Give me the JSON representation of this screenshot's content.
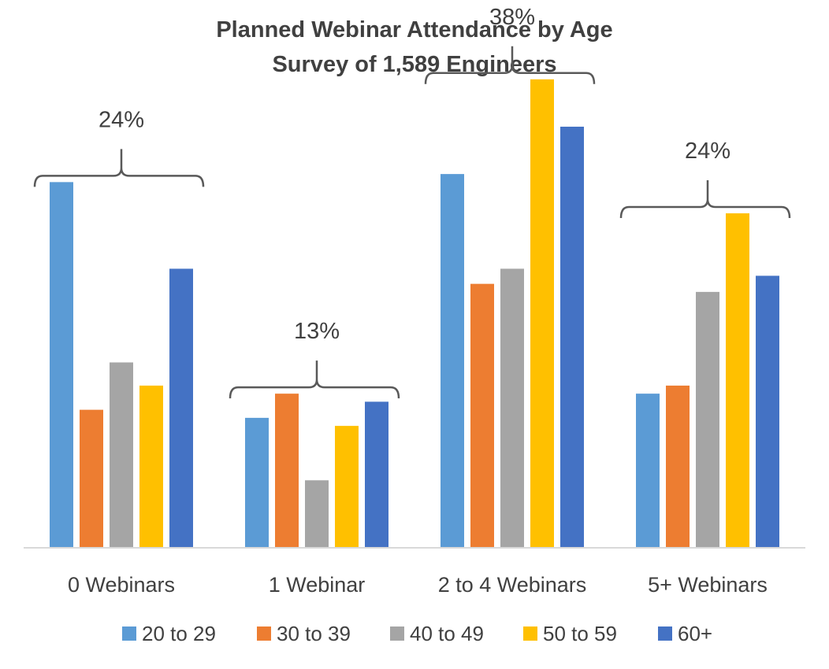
{
  "chart_data": {
    "type": "bar",
    "title_line1": "Planned Webinar Attendance by Age",
    "title_line2": "Survey of 1,589 Engineers",
    "categories": [
      "0 Webinars",
      "1 Webinar",
      "2 to 4 Webinars",
      "5+ Webinars"
    ],
    "series": [
      {
        "name": "20 to 29",
        "color": "#5b9bd5",
        "values": [
          36.3,
          12.9,
          37.1,
          15.3
        ]
      },
      {
        "name": "30 to 39",
        "color": "#ed7d31",
        "values": [
          13.7,
          15.3,
          26.2,
          16.1
        ]
      },
      {
        "name": "40 to 49",
        "color": "#a5a5a5",
        "values": [
          18.4,
          6.7,
          27.7,
          25.4
        ]
      },
      {
        "name": "50 to 59",
        "color": "#ffc000",
        "values": [
          16.1,
          12.1,
          46.5,
          33.2
        ]
      },
      {
        "name": "60+",
        "color": "#4472c4",
        "values": [
          27.7,
          14.5,
          41.8,
          27.0
        ]
      }
    ],
    "group_totals": [
      "24%",
      "13%",
      "38%",
      "24%"
    ],
    "ylim": [
      0,
      50
    ],
    "xlabel": "",
    "ylabel": "",
    "grid": false,
    "legend_position": "bottom"
  }
}
